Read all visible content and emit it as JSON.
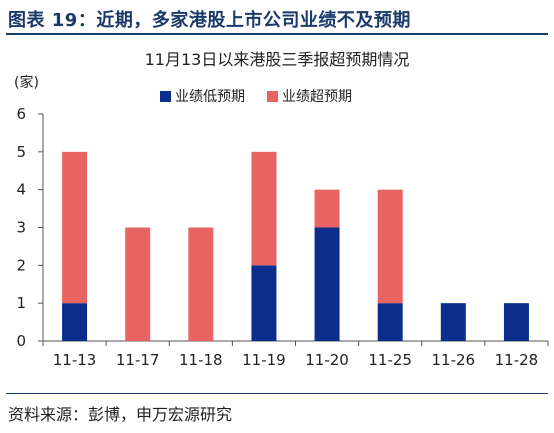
{
  "figure_title": "图表 19：近期，多家港股上市公司业绩不及预期",
  "source": "资料来源：彭博，申万宏源研究",
  "colors": {
    "below": "#0b2d8c",
    "above": "#e86464",
    "heading": "#1a3a6b"
  },
  "chart_data": {
    "type": "bar",
    "stacked": true,
    "title": "11月13日以来港股三季报超预期情况",
    "ylabel": "(家)",
    "xlabel": "",
    "categories": [
      "11-13",
      "11-17",
      "11-18",
      "11-19",
      "11-20",
      "11-25",
      "11-26",
      "11-28"
    ],
    "series": [
      {
        "name": "业绩低预期",
        "color": "#0b2d8c",
        "values": [
          1,
          0,
          0,
          2,
          3,
          1,
          1,
          1
        ]
      },
      {
        "name": "业绩超预期",
        "color": "#e86464",
        "values": [
          4,
          3,
          3,
          3,
          1,
          3,
          0,
          0
        ]
      }
    ],
    "ylim": [
      0,
      6
    ],
    "yticks": [
      0,
      1,
      2,
      3,
      4,
      5,
      6
    ],
    "grid": false,
    "legend_position": "top"
  }
}
